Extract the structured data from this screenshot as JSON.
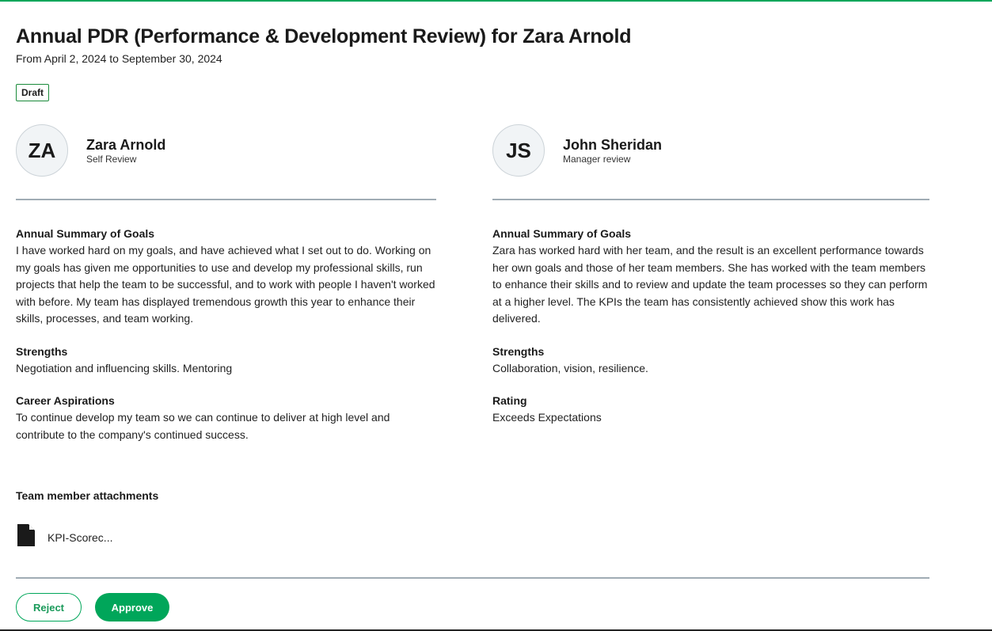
{
  "header": {
    "title": "Annual PDR (Performance & Development Review) for Zara Arnold",
    "date_range": "From April 2, 2024 to September 30, 2024",
    "status": "Draft"
  },
  "self": {
    "initials": "ZA",
    "name": "Zara Arnold",
    "role": "Self Review",
    "sections": [
      {
        "title": "Annual Summary of Goals",
        "text": "I have worked hard on my goals, and have achieved what I set out to do. Working on my goals has given me opportunities to use and develop my professional skills, run projects that help the team to be successful, and to work with people I haven't worked with before. My team has displayed tremendous growth this year to enhance their skills, processes, and team working."
      },
      {
        "title": "Strengths",
        "text": "Negotiation and influencing skills. Mentoring"
      },
      {
        "title": "Career Aspirations",
        "text": "To continue develop my team so we can continue to deliver at high level and contribute to the company's continued success."
      }
    ]
  },
  "manager": {
    "initials": "JS",
    "name": "John Sheridan",
    "role": "Manager review",
    "sections": [
      {
        "title": "Annual Summary of Goals",
        "text": "Zara has worked hard with her team, and the result is an excellent performance towards her own goals and those of her team members. She has worked with the team members to enhance their skills and to review and update the team processes so they can perform at a higher level. The KPIs the team has consistently achieved show this work has delivered."
      },
      {
        "title": "Strengths",
        "text": "Collaboration, vision, resilience."
      },
      {
        "title": "Rating",
        "text": "Exceeds Expectations"
      }
    ]
  },
  "attachments": {
    "title": "Team member attachments",
    "files": [
      {
        "name": "KPI-Scorec...",
        "icon": "file-icon"
      }
    ]
  },
  "actions": {
    "reject": "Reject",
    "approve": "Approve"
  },
  "colors": {
    "accent": "#00a65a"
  }
}
